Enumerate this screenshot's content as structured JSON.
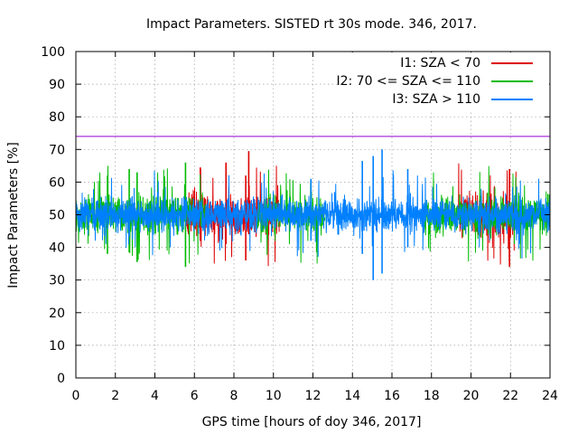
{
  "chart_data": {
    "type": "line",
    "title": "Impact Parameters. SISTED rt 30s mode. 346, 2017.",
    "xlabel": "GPS time [hours of doy 346, 2017]",
    "ylabel": "Impact Parameters [%]",
    "xlim": [
      0,
      24
    ],
    "ylim": [
      0,
      100
    ],
    "xticks": [
      0,
      2,
      4,
      6,
      8,
      10,
      12,
      14,
      16,
      18,
      20,
      22,
      24
    ],
    "yticks": [
      0,
      10,
      20,
      30,
      40,
      50,
      60,
      70,
      80,
      90,
      100
    ],
    "grid": true,
    "legend_position": "top-right",
    "reference_line": {
      "y": 74,
      "color": "#9400d3"
    },
    "series": [
      {
        "name": "I1: SZA < 70",
        "color": "#dd0000",
        "segments": [
          [
            5.6,
            10.3
          ],
          [
            19.3,
            22.3
          ]
        ],
        "center": 50,
        "spread": 4.2,
        "extremes": [
          {
            "x": 8.75,
            "low": 44.0,
            "high": 69.5
          },
          {
            "x": 8.6,
            "low": 36.0,
            "high": 62.0
          },
          {
            "x": 7.6,
            "low": 41.0,
            "high": 66.0
          },
          {
            "x": 21.95,
            "low": 34.0,
            "high": 64.0
          },
          {
            "x": 6.3,
            "low": 42.0,
            "high": 64.5
          }
        ]
      },
      {
        "name": "I2: 70 <= SZA <= 110",
        "color": "#00bb00",
        "segments": [
          [
            0,
            6.6
          ],
          [
            9.2,
            12.6
          ],
          [
            17.6,
            24
          ]
        ],
        "center": 50,
        "spread": 4.0,
        "extremes": [
          {
            "x": 5.55,
            "low": 34.0,
            "high": 66.0
          },
          {
            "x": 3.1,
            "low": 35.5,
            "high": 63.0
          },
          {
            "x": 1.6,
            "low": 38.0,
            "high": 62.0
          },
          {
            "x": 2.7,
            "low": 38.5,
            "high": 64.0
          }
        ]
      },
      {
        "name": "I3: SZA > 110",
        "color": "#0080ff",
        "segments": [
          [
            0,
            24
          ]
        ],
        "center": 50,
        "spread": 3.6,
        "extremes": [
          {
            "x": 15.05,
            "low": 30.0,
            "high": 68.0
          },
          {
            "x": 15.5,
            "low": 32.0,
            "high": 70.0
          },
          {
            "x": 14.5,
            "low": 38.0,
            "high": 66.5
          },
          {
            "x": 11.9,
            "low": 42.0,
            "high": 61.0
          },
          {
            "x": 16.8,
            "low": 40.0,
            "high": 64.0
          }
        ]
      }
    ]
  }
}
